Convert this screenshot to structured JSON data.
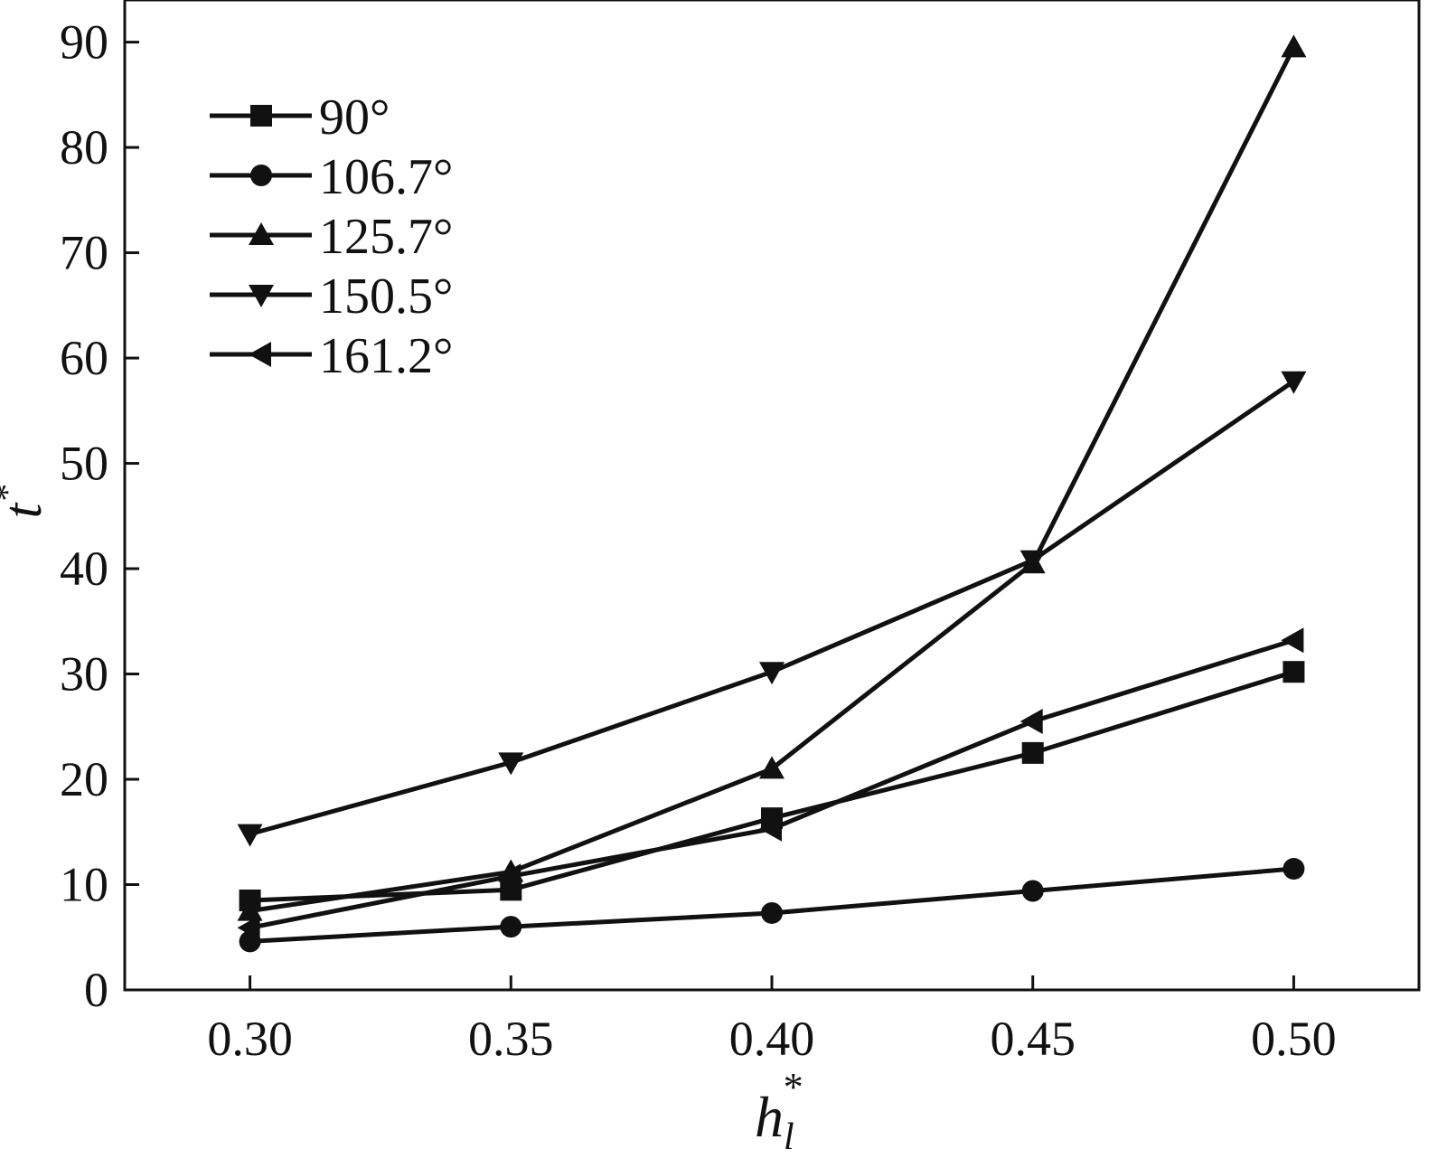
{
  "chart_data": {
    "type": "line",
    "title": "",
    "xlabel": {
      "base": "h",
      "sub": "l",
      "sup": "*"
    },
    "ylabel": {
      "base": "t",
      "sup": "*"
    },
    "x": [
      0.3,
      0.35,
      0.4,
      0.45,
      0.5
    ],
    "xlim": [
      0.276,
      0.524
    ],
    "ylim": [
      0,
      94
    ],
    "xticks": [
      0.3,
      0.35,
      0.4,
      0.45,
      0.5
    ],
    "xtick_labels": [
      "0.30",
      "0.35",
      "0.40",
      "0.45",
      "0.50"
    ],
    "yticks": [
      0,
      10,
      20,
      30,
      40,
      50,
      60,
      70,
      80,
      90
    ],
    "ytick_labels": [
      "0",
      "10",
      "20",
      "30",
      "40",
      "50",
      "60",
      "70",
      "80",
      "90"
    ],
    "grid": false,
    "legend_position": "top-left",
    "series": [
      {
        "name": "90°",
        "marker": "square",
        "values": [
          8.5,
          9.5,
          16.3,
          22.5,
          30.2
        ]
      },
      {
        "name": "106.7°",
        "marker": "circle",
        "values": [
          4.6,
          6.0,
          7.3,
          9.4,
          11.5
        ]
      },
      {
        "name": "125.7°",
        "marker": "triangle-up",
        "values": [
          7.5,
          11.2,
          21.0,
          40.5,
          89.5
        ]
      },
      {
        "name": "150.5°",
        "marker": "triangle-down",
        "values": [
          14.8,
          21.6,
          30.2,
          40.8,
          57.8
        ]
      },
      {
        "name": "161.2°",
        "marker": "triangle-left",
        "values": [
          5.9,
          10.8,
          15.3,
          25.5,
          33.2
        ]
      }
    ],
    "colors": {
      "line": "#111111",
      "marker": "#111111"
    }
  }
}
